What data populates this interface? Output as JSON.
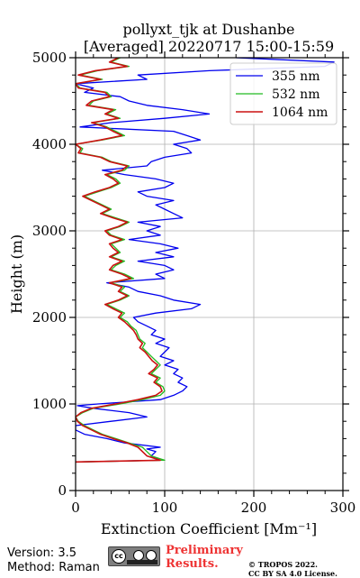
{
  "chart_data": {
    "type": "line",
    "title": "pollyxt_tjk at Dushanbe",
    "subtitle": "[Averaged] 20220717 15:00-15:59",
    "xlabel": "Extinction Coefficient [Mm⁻¹]",
    "ylabel": "Height (m)",
    "xlim": [
      0,
      300
    ],
    "ylim": [
      0,
      5000
    ],
    "xticks": [
      "0",
      "100",
      "200",
      "300"
    ],
    "yticks": [
      "0",
      "1000",
      "2000",
      "3000",
      "4000",
      "5000"
    ],
    "grid": true,
    "legend_position": "top-right",
    "series": [
      {
        "name": "355 nm",
        "color": "#0000ee",
        "y": [
          330,
          350,
          400,
          450,
          480,
          500,
          550,
          600,
          650,
          700,
          750,
          800,
          850,
          900,
          950,
          980,
          1000,
          1050,
          1100,
          1150,
          1200,
          1250,
          1300,
          1350,
          1400,
          1450,
          1500,
          1550,
          1600,
          1650,
          1700,
          1750,
          1800,
          1850,
          1900,
          1950,
          2000,
          2050,
          2100,
          2150,
          2200,
          2250,
          2300,
          2350,
          2400,
          2450,
          2500,
          2550,
          2600,
          2650,
          2700,
          2750,
          2800,
          2850,
          2900,
          2950,
          3000,
          3050,
          3100,
          3150,
          3200,
          3250,
          3300,
          3350,
          3400,
          3450,
          3500,
          3550,
          3600,
          3650,
          3700,
          3750,
          3800,
          3850,
          3900,
          3950,
          4000,
          4050,
          4100,
          4150,
          4200,
          4250,
          4300,
          4350,
          4400,
          4450,
          4500,
          4550,
          4600,
          4650,
          4700,
          4750,
          4800,
          4850,
          4900,
          4950,
          5000
        ],
        "x": [
          0,
          95,
          85,
          90,
          80,
          95,
          55,
          35,
          10,
          0,
          0,
          40,
          80,
          60,
          20,
          2,
          25,
          95,
          110,
          120,
          125,
          115,
          120,
          110,
          115,
          100,
          110,
          95,
          100,
          105,
          90,
          100,
          85,
          90,
          80,
          70,
          65,
          90,
          130,
          140,
          110,
          95,
          70,
          60,
          35,
          100,
          90,
          110,
          100,
          70,
          110,
          90,
          115,
          95,
          60,
          95,
          80,
          95,
          70,
          120,
          110,
          100,
          90,
          110,
          80,
          70,
          100,
          110,
          90,
          55,
          30,
          80,
          85,
          100,
          130,
          125,
          110,
          140,
          125,
          110,
          5,
          40,
          100,
          150,
          120,
          80,
          60,
          50,
          10,
          20,
          0,
          80,
          70,
          150,
          280,
          290,
          180
        ],
        "stroke_width": 1.3
      },
      {
        "name": "532 nm",
        "color": "#22bb22",
        "y": [
          330,
          350,
          400,
          450,
          500,
          550,
          600,
          650,
          700,
          750,
          800,
          850,
          900,
          950,
          1000,
          1050,
          1100,
          1150,
          1200,
          1250,
          1300,
          1350,
          1400,
          1450,
          1500,
          1550,
          1600,
          1650,
          1700,
          1750,
          1800,
          1850,
          1900,
          1950,
          2000,
          2050,
          2100,
          2150,
          2200,
          2250,
          2300,
          2350,
          2400,
          2450,
          2500,
          2550,
          2600,
          2650,
          2700,
          2750,
          2800,
          2850,
          2900,
          2950,
          3000,
          3050,
          3100,
          3150,
          3200,
          3250,
          3300,
          3350,
          3400,
          3450,
          3500,
          3550,
          3600,
          3650,
          3700,
          3750,
          3800,
          3850,
          3900,
          3950,
          4000,
          4050,
          4100,
          4150,
          4200,
          4250,
          4300,
          4350,
          4400,
          4450,
          4500,
          4550,
          4600,
          4650,
          4700,
          4750,
          4800,
          4850,
          4900,
          4950,
          5000
        ],
        "x": [
          0,
          100,
          85,
          80,
          75,
          60,
          45,
          30,
          20,
          10,
          3,
          0,
          8,
          20,
          50,
          75,
          95,
          100,
          98,
          90,
          95,
          85,
          90,
          95,
          90,
          85,
          80,
          75,
          78,
          72,
          70,
          68,
          62,
          58,
          50,
          55,
          45,
          35,
          50,
          60,
          50,
          55,
          40,
          65,
          55,
          40,
          45,
          55,
          40,
          50,
          45,
          40,
          55,
          40,
          35,
          50,
          60,
          45,
          30,
          40,
          30,
          20,
          10,
          25,
          40,
          50,
          45,
          35,
          55,
          60,
          40,
          30,
          5,
          8,
          0,
          30,
          55,
          45,
          35,
          20,
          50,
          35,
          45,
          15,
          20,
          40,
          35,
          5,
          0,
          30,
          5,
          25,
          60,
          40,
          50
        ],
        "stroke_width": 1.3
      },
      {
        "name": "1064 nm",
        "color": "#cc1111",
        "y": [
          330,
          350,
          400,
          450,
          500,
          550,
          600,
          650,
          700,
          750,
          800,
          850,
          900,
          950,
          1000,
          1050,
          1100,
          1150,
          1200,
          1250,
          1300,
          1350,
          1400,
          1450,
          1500,
          1550,
          1600,
          1650,
          1700,
          1750,
          1800,
          1850,
          1900,
          1950,
          2000,
          2050,
          2100,
          2150,
          2200,
          2250,
          2300,
          2350,
          2400,
          2450,
          2500,
          2550,
          2600,
          2650,
          2700,
          2750,
          2800,
          2850,
          2900,
          2950,
          3000,
          3050,
          3100,
          3150,
          3200,
          3250,
          3300,
          3350,
          3400,
          3450,
          3500,
          3550,
          3600,
          3650,
          3700,
          3750,
          3800,
          3850,
          3900,
          3950,
          4000,
          4050,
          4100,
          4150,
          4200,
          4250,
          4300,
          4350,
          4400,
          4450,
          4500,
          4550,
          4600,
          4650,
          4700,
          4750,
          4800,
          4850,
          4900,
          4950,
          5000
        ],
        "x": [
          0,
          95,
          80,
          75,
          70,
          58,
          42,
          28,
          18,
          8,
          2,
          0,
          6,
          18,
          45,
          70,
          90,
          97,
          95,
          88,
          92,
          82,
          88,
          92,
          86,
          82,
          78,
          72,
          75,
          70,
          68,
          65,
          60,
          55,
          48,
          52,
          42,
          33,
          48,
          58,
          48,
          52,
          38,
          62,
          52,
          38,
          42,
          52,
          38,
          48,
          42,
          38,
          52,
          38,
          33,
          48,
          58,
          42,
          28,
          38,
          28,
          18,
          8,
          22,
          38,
          48,
          42,
          33,
          52,
          58,
          38,
          28,
          3,
          6,
          0,
          28,
          52,
          42,
          33,
          18,
          48,
          33,
          42,
          12,
          18,
          38,
          33,
          3,
          0,
          28,
          3,
          22,
          58,
          38,
          48
        ],
        "stroke_width": 1.6
      }
    ]
  },
  "footer": {
    "version": "Version: 3.5",
    "method": "Method: Raman",
    "cc_label": "cc",
    "preliminary_line1": "Preliminary",
    "preliminary_line2": "Results.",
    "copyright_line1": "© TROPOS 2022.",
    "copyright_line2": "CC BY SA 4.0 License."
  }
}
